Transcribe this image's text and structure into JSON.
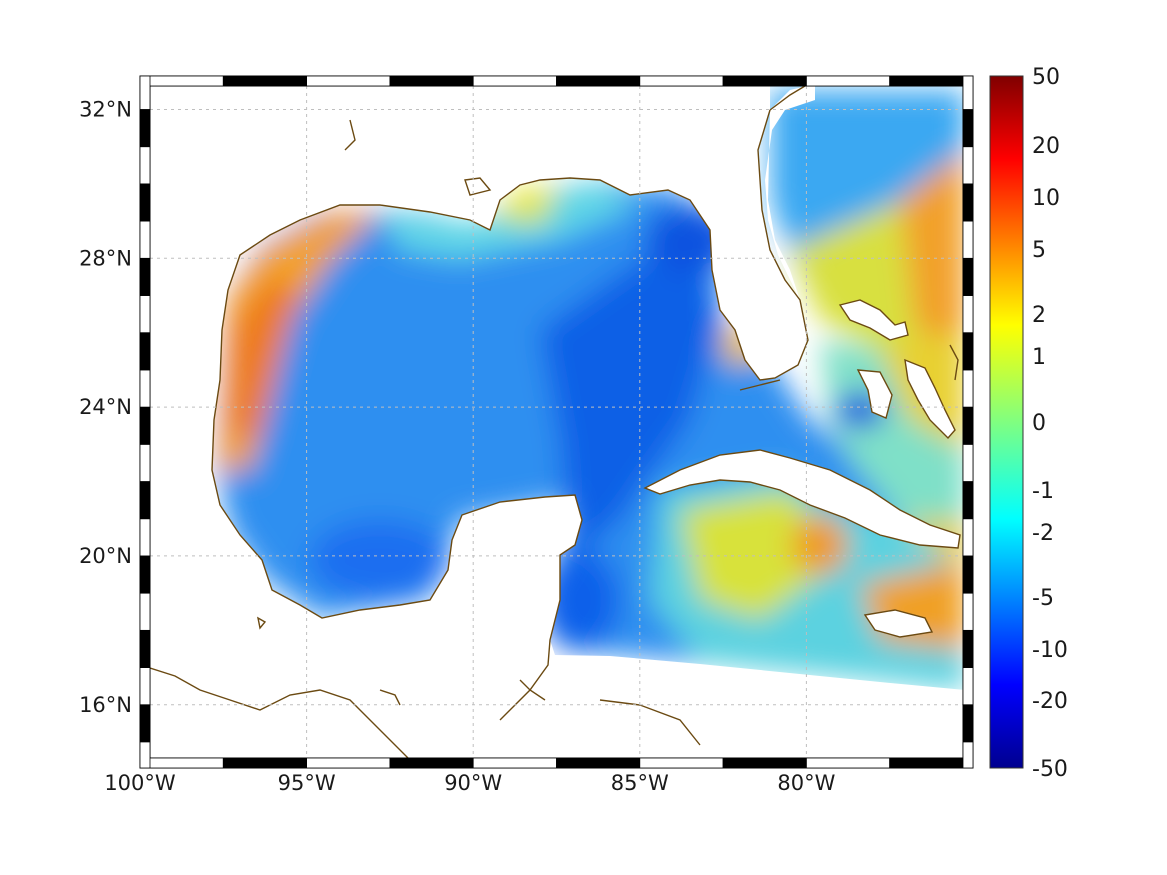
{
  "map": {
    "lat_ticks": [
      {
        "label": "32°N",
        "value": 32
      },
      {
        "label": "28°N",
        "value": 28
      },
      {
        "label": "24°N",
        "value": 24
      },
      {
        "label": "20°N",
        "value": 20
      },
      {
        "label": "16°N",
        "value": 16
      }
    ],
    "lon_ticks": [
      {
        "label": "100°W",
        "value": -100
      },
      {
        "label": "95°W",
        "value": -95
      },
      {
        "label": "90°W",
        "value": -90
      },
      {
        "label": "85°W",
        "value": -85
      },
      {
        "label": "80°W",
        "value": -80
      }
    ],
    "extent": {
      "lon_min": -100,
      "lon_max": -75,
      "lat_min": 14.3,
      "lat_max": 32.9
    },
    "grid": true,
    "coastline_color": "#6b4a12"
  },
  "colorbar": {
    "ticks": [
      "50",
      "20",
      "10",
      "5",
      "2",
      "1",
      "0",
      "-1",
      "-2",
      "-5",
      "-10",
      "-20",
      "-50"
    ],
    "colormap": "jet",
    "color_top": "#800000",
    "color_bottom": "#00008f"
  }
}
